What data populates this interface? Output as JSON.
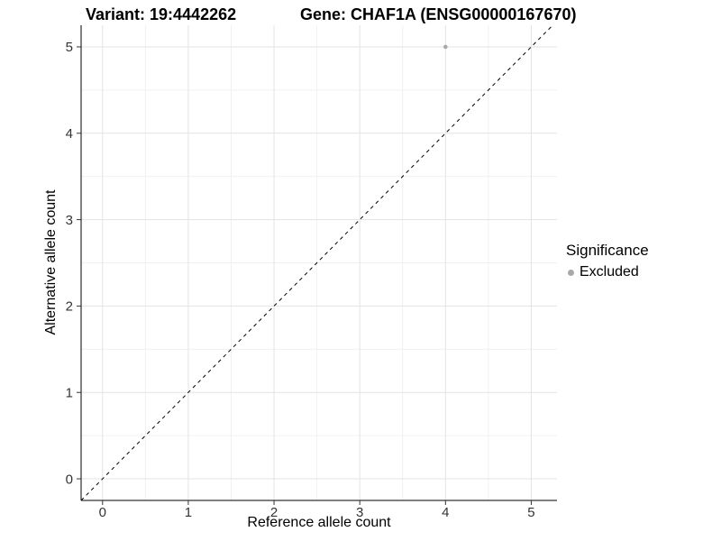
{
  "chart_data": {
    "type": "scatter",
    "title_left": "Variant: 19:4442262",
    "title_right": "Gene: CHAF1A (ENSG00000167670)",
    "xlabel": "Reference allele count",
    "ylabel": "Alternative allele count",
    "xlim": [
      -0.25,
      5.3
    ],
    "ylim": [
      -0.25,
      5.25
    ],
    "xticks": [
      0,
      1,
      2,
      3,
      4,
      5
    ],
    "yticks": [
      0,
      1,
      2,
      3,
      4,
      5
    ],
    "grid": true,
    "grid_major_color": "#e3e3e3",
    "grid_minor_color": "#f0f0f0",
    "panel_background": "#ffffff",
    "axis_color": "#000000",
    "tick_label_color": "#333333",
    "series": [
      {
        "name": "Excluded",
        "color": "#a9a9a9",
        "points": [
          [
            4,
            5
          ]
        ]
      }
    ],
    "reference_line": {
      "type": "identity",
      "slope": 1,
      "intercept": 0,
      "style": "dashed",
      "color": "#000000"
    },
    "legend": {
      "title": "Significance",
      "position": "right",
      "items": [
        {
          "label": "Excluded",
          "color": "#a9a9a9"
        }
      ]
    }
  }
}
